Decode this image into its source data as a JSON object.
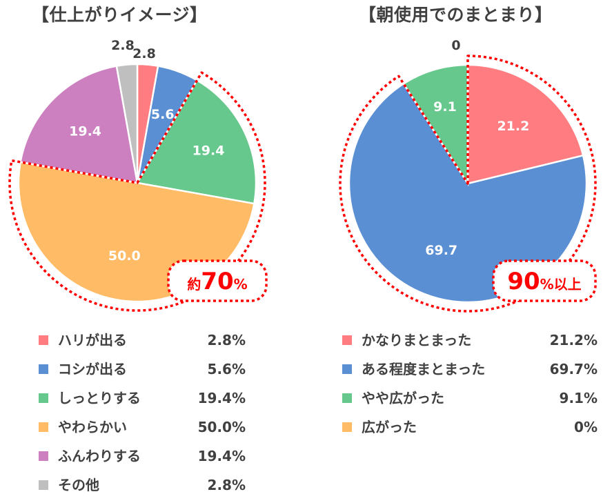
{
  "chart_data": [
    {
      "type": "pie",
      "title": "【仕上がりイメージ】",
      "slices": [
        {
          "label": "ハリが出る",
          "value": 2.8,
          "display": "2.8",
          "legend_value": "2.8%",
          "color": "#FF7C80"
        },
        {
          "label": "コシが出る",
          "value": 5.6,
          "display": "5.6",
          "legend_value": "5.6%",
          "color": "#5B8FD4"
        },
        {
          "label": "しっとりする",
          "value": 19.4,
          "display": "19.4",
          "legend_value": "19.4%",
          "color": "#66C88C"
        },
        {
          "label": "やわらかい",
          "value": 50.0,
          "display": "50.0",
          "legend_value": "50.0%",
          "color": "#FFBB66"
        },
        {
          "label": "ふんわりする",
          "value": 19.4,
          "display": "19.4",
          "legend_value": "19.4%",
          "color": "#CC80C0"
        },
        {
          "label": "その他",
          "value": 2.8,
          "display": "2.8",
          "legend_value": "2.8%",
          "color": "#BFBFBF"
        }
      ],
      "annotation": {
        "prefix": "約",
        "number": "70",
        "suffix": "%",
        "color": "#FF0000",
        "highlighted_slices": [
          "しっとりする",
          "やわらかい"
        ]
      }
    },
    {
      "type": "pie",
      "title": "【朝使用でのまとまり】",
      "slices": [
        {
          "label": "かなりまとまった",
          "value": 21.2,
          "display": "21.2",
          "legend_value": "21.2%",
          "color": "#FF7C80"
        },
        {
          "label": "ある程度まとまった",
          "value": 69.7,
          "display": "69.7",
          "legend_value": "69.7%",
          "color": "#5B8FD4"
        },
        {
          "label": "やや広がった",
          "value": 9.1,
          "display": "9.1",
          "legend_value": "9.1%",
          "color": "#66C88C"
        },
        {
          "label": "広がった",
          "value": 0,
          "display": "0",
          "legend_value": "0%",
          "color": "#FFBB66"
        }
      ],
      "annotation": {
        "prefix": "",
        "number": "90",
        "suffix": "%以上",
        "color": "#FF0000",
        "highlighted_slices": [
          "かなりまとまった",
          "ある程度まとまった"
        ]
      }
    }
  ]
}
